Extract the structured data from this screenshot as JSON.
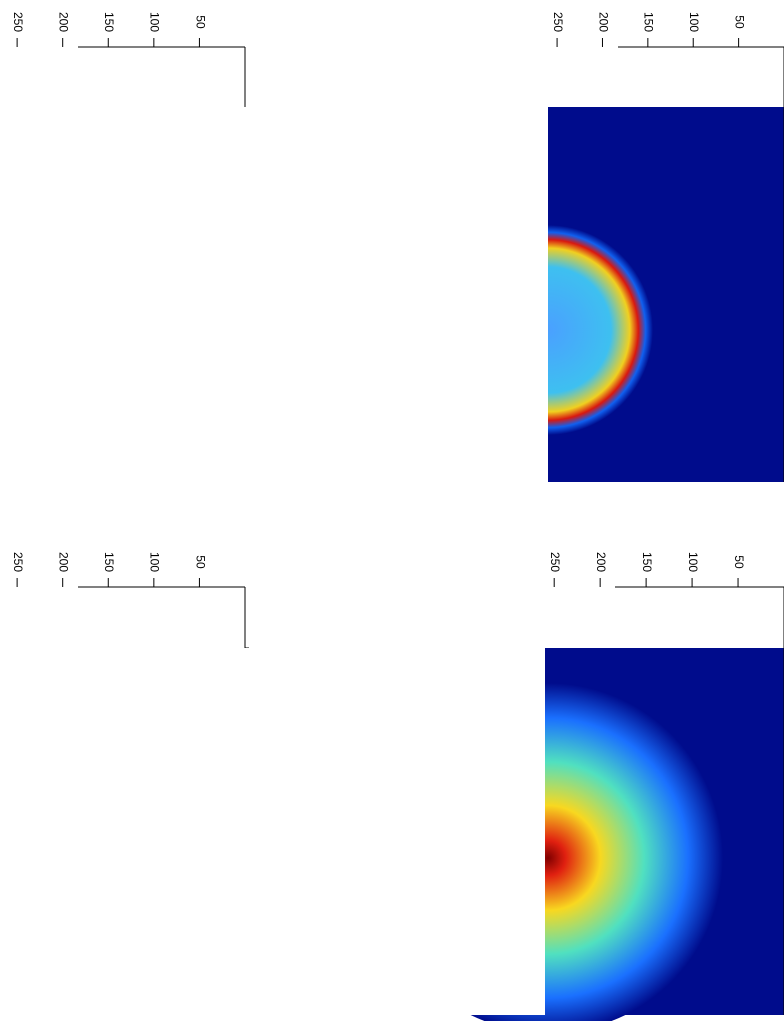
{
  "chart_data": [
    {
      "type": "heatmap",
      "xlim": [
        260,
        0
      ],
      "xticks": [
        250,
        200,
        150,
        100,
        50
      ]
    },
    {
      "type": "heatmap",
      "xlim": [
        260,
        0
      ],
      "xticks": [
        250,
        200,
        150,
        100,
        50
      ]
    },
    {
      "type": "heatmap",
      "xlim": [
        260,
        0
      ],
      "xticks": [
        250,
        200,
        150,
        100,
        50
      ]
    },
    {
      "type": "heatmap",
      "xlim": [
        260,
        0
      ],
      "xticks": [
        250,
        200,
        150,
        100,
        50
      ]
    }
  ]
}
